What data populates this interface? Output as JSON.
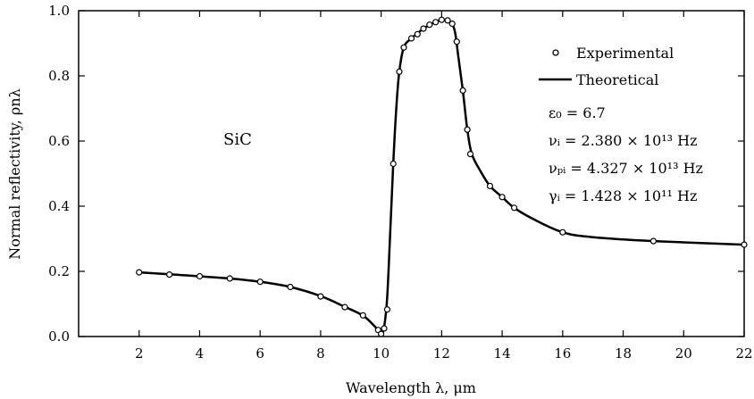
{
  "chart_data": {
    "type": "line",
    "xlabel": "Wavelength λ, μm",
    "ylabel": "Normal reflectivity, ρnλ",
    "xlim": [
      0,
      22
    ],
    "ylim": [
      0,
      1.0
    ],
    "x_ticks": [
      2,
      4,
      6,
      8,
      10,
      12,
      14,
      16,
      18,
      20,
      22
    ],
    "y_ticks": [
      0.0,
      0.2,
      0.4,
      0.6,
      0.8,
      1.0
    ],
    "y_tick_labels": [
      "0.0",
      "0.2",
      "0.4",
      "0.6",
      "0.8",
      "1.0"
    ],
    "grid": false,
    "legend_position": "top-right",
    "annotation": "SiC",
    "params": {
      "eps0": "ε₀ = 6.7",
      "nu_i": "νᵢ = 2.380 × 10¹³ Hz",
      "nu_pi": "νₚᵢ = 4.327 × 10¹³ Hz",
      "gamma_i": "γᵢ = 1.428 × 10¹¹ Hz"
    },
    "series": [
      {
        "name": "Experimental",
        "style": "markers",
        "x": [
          2,
          3,
          4,
          5,
          6,
          7,
          8,
          8.8,
          9.4,
          9.9,
          10.0,
          10.1,
          10.2,
          10.4,
          10.6,
          10.75,
          11.0,
          11.2,
          11.4,
          11.6,
          11.8,
          12.0,
          12.2,
          12.35,
          12.5,
          12.7,
          12.85,
          12.95,
          13.6,
          14.0,
          14.4,
          16.0,
          19.0,
          22.0
        ],
        "y": [
          0.197,
          0.19,
          0.185,
          0.178,
          0.168,
          0.152,
          0.123,
          0.09,
          0.065,
          0.02,
          0.008,
          0.025,
          0.083,
          0.53,
          0.813,
          0.887,
          0.915,
          0.928,
          0.945,
          0.957,
          0.965,
          0.972,
          0.97,
          0.96,
          0.905,
          0.755,
          0.635,
          0.56,
          0.462,
          0.428,
          0.395,
          0.32,
          0.293,
          0.282
        ]
      },
      {
        "name": "Theoretical",
        "style": "line",
        "x": [
          2,
          3,
          4,
          5,
          6,
          7,
          8,
          8.8,
          9.4,
          9.8,
          10.0,
          10.1,
          10.2,
          10.3,
          10.4,
          10.5,
          10.6,
          10.75,
          11.0,
          11.4,
          11.8,
          12.0,
          12.2,
          12.35,
          12.45,
          12.55,
          12.7,
          12.85,
          13.0,
          13.3,
          13.6,
          14.0,
          14.4,
          15.0,
          16.0,
          17.0,
          19.0,
          22.0
        ],
        "y": [
          0.197,
          0.191,
          0.185,
          0.178,
          0.168,
          0.152,
          0.124,
          0.091,
          0.064,
          0.03,
          0.01,
          0.03,
          0.12,
          0.32,
          0.53,
          0.7,
          0.813,
          0.887,
          0.915,
          0.945,
          0.966,
          0.972,
          0.969,
          0.958,
          0.93,
          0.86,
          0.755,
          0.635,
          0.56,
          0.505,
          0.462,
          0.428,
          0.395,
          0.362,
          0.32,
          0.305,
          0.293,
          0.282
        ]
      }
    ]
  }
}
